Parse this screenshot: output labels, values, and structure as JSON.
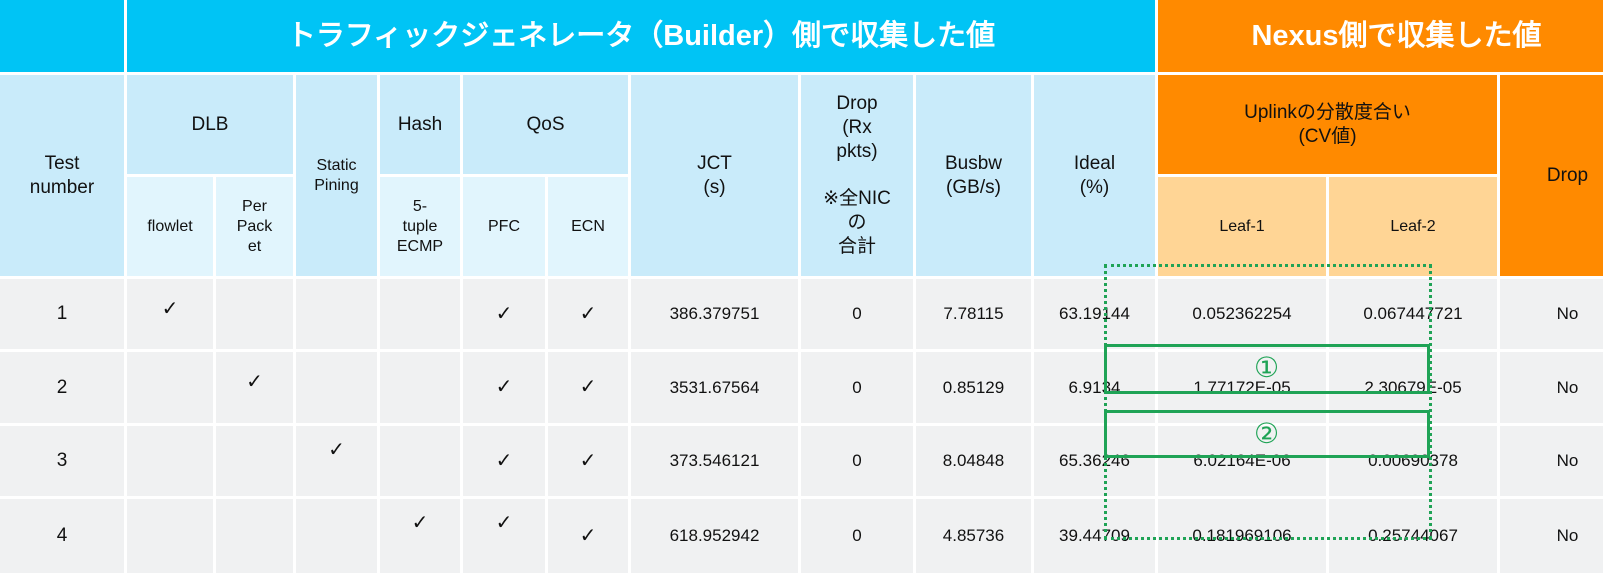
{
  "header": {
    "builder_title": "トラフィックジェネレータ（Builder）側で収集した値",
    "nexus_title": "Nexus側で収集した値"
  },
  "columns": {
    "test_number": "Test\nnumber",
    "dlb": "DLB",
    "flowlet": "flowlet",
    "per_packet": "Per\nPack\net",
    "static_pining": "Static\nPining",
    "hash": "Hash",
    "five_tuple": "5-\ntuple\nECMP",
    "qos": "QoS",
    "pfc": "PFC",
    "ecn": "ECN",
    "jct": "JCT\n(s)",
    "drop_rx": "Drop\n(Rx\npkts)\n\n※全NIC\nの\n合計",
    "busbw": "Busbw\n(GB/s)",
    "ideal": "Ideal\n(%)",
    "uplink": "Uplinkの分散度合い\n(CV値)",
    "leaf1": "Leaf-1",
    "leaf2": "Leaf-2",
    "drop": "Drop"
  },
  "rows": [
    {
      "test": "1",
      "flowlet": "✓",
      "per_packet": "",
      "static": "",
      "ecmp": "",
      "pfc": "✓",
      "ecn": "✓",
      "jct": "386.379751",
      "drop_rx": "0",
      "busbw": "7.78115",
      "ideal": "63.19144",
      "leaf1": "0.052362254",
      "leaf2": "0.067447721",
      "drop": "No"
    },
    {
      "test": "2",
      "flowlet": "",
      "per_packet": "✓",
      "static": "",
      "ecmp": "",
      "pfc": "✓",
      "ecn": "✓",
      "jct": "3531.67564",
      "drop_rx": "0",
      "busbw": "0.85129",
      "ideal": "6.9134",
      "leaf1": "1.77172E-05",
      "leaf2": "2.30679E-05",
      "drop": "No"
    },
    {
      "test": "3",
      "flowlet": "",
      "per_packet": "",
      "static": "✓",
      "ecmp": "",
      "pfc": "✓",
      "ecn": "✓",
      "jct": "373.546121",
      "drop_rx": "0",
      "busbw": "8.04848",
      "ideal": "65.36246",
      "leaf1": "6.02164E-06",
      "leaf2": "0.00690378",
      "drop": "No"
    },
    {
      "test": "4",
      "flowlet": "",
      "per_packet": "",
      "static": "",
      "ecmp": "✓",
      "pfc": "✓",
      "ecn": "✓",
      "jct": "618.952942",
      "drop_rx": "0",
      "busbw": "4.85736",
      "ideal": "39.44709",
      "leaf1": "0.181969106",
      "leaf2": "0.25744067",
      "drop": "No"
    }
  ],
  "annotations": {
    "marker1": "①",
    "marker2": "②"
  },
  "colors": {
    "accent_cyan": "#00c4f5",
    "accent_orange": "#ff8a00",
    "highlight_green": "#1fa356"
  }
}
